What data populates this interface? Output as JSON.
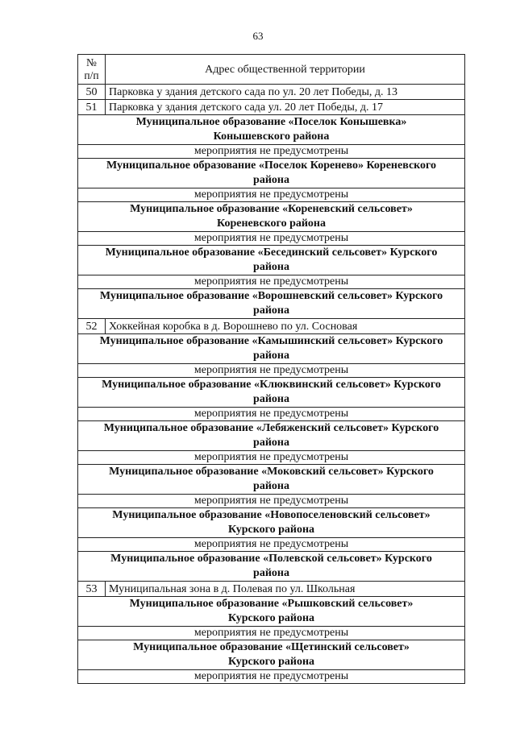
{
  "page_number": "63",
  "header": {
    "num_line1": "№",
    "num_line2": "п/п",
    "address": "Адрес общественной территории"
  },
  "rows": [
    {
      "type": "item",
      "num": "50",
      "text": "Парковка у здания детского сада по ул. 20 лет Победы, д. 13"
    },
    {
      "type": "item",
      "num": "51",
      "text": "Парковка у здания детского сада ул. 20 лет Победы, д. 17"
    },
    {
      "type": "group",
      "lines": [
        "Муниципальное образование «Поселок Конышевка»",
        "Конышевского района"
      ]
    },
    {
      "type": "none",
      "text": "мероприятия не предусмотрены"
    },
    {
      "type": "group",
      "lines": [
        "Муниципальное образование «Поселок Коренево» Кореневского",
        "района"
      ]
    },
    {
      "type": "none",
      "text": "мероприятия не предусмотрены"
    },
    {
      "type": "group",
      "lines": [
        "Муниципальное образование «Кореневский сельсовет»",
        "Кореневского района"
      ]
    },
    {
      "type": "none",
      "text": "мероприятия не предусмотрены"
    },
    {
      "type": "group",
      "lines": [
        "Муниципальное образование «Бесединский сельсовет» Курского",
        "района"
      ]
    },
    {
      "type": "none",
      "text": "мероприятия не предусмотрены"
    },
    {
      "type": "group",
      "lines": [
        "Муниципальное образование «Ворошневский сельсовет» Курского",
        "района"
      ]
    },
    {
      "type": "item",
      "num": "52",
      "text": "Хоккейная коробка в д. Ворошнево по ул. Сосновая"
    },
    {
      "type": "group",
      "lines": [
        "Муниципальное образование «Камышинский сельсовет» Курского",
        "района"
      ]
    },
    {
      "type": "none",
      "text": "мероприятия не предусмотрены"
    },
    {
      "type": "group",
      "lines": [
        "Муниципальное образование «Клюквинский сельсовет» Курского",
        "района"
      ]
    },
    {
      "type": "none",
      "text": "мероприятия не предусмотрены"
    },
    {
      "type": "group",
      "lines": [
        "Муниципальное образование «Лебяженский сельсовет» Курского",
        "района"
      ]
    },
    {
      "type": "none",
      "text": "мероприятия не предусмотрены"
    },
    {
      "type": "group",
      "lines": [
        "Муниципальное образование «Моковский сельсовет» Курского",
        "района"
      ]
    },
    {
      "type": "none",
      "text": "мероприятия не предусмотрены"
    },
    {
      "type": "group",
      "lines": [
        "Муниципальное образование «Новопоселеновский сельсовет»",
        "Курского района"
      ]
    },
    {
      "type": "none",
      "text": "мероприятия не предусмотрены"
    },
    {
      "type": "group",
      "lines": [
        "Муниципальное образование «Полевской сельсовет» Курского",
        "района"
      ]
    },
    {
      "type": "item",
      "num": "53",
      "text": "Муниципальная зона в д. Полевая по ул. Школьная"
    },
    {
      "type": "group",
      "lines": [
        "Муниципальное образование «Рышковский сельсовет»",
        "Курского района"
      ]
    },
    {
      "type": "none",
      "text": "мероприятия не предусмотрены"
    },
    {
      "type": "group",
      "lines": [
        "Муниципальное образование «Щетинский сельсовет»",
        "Курского района"
      ]
    },
    {
      "type": "none",
      "text": "мероприятия не предусмотрены"
    }
  ]
}
